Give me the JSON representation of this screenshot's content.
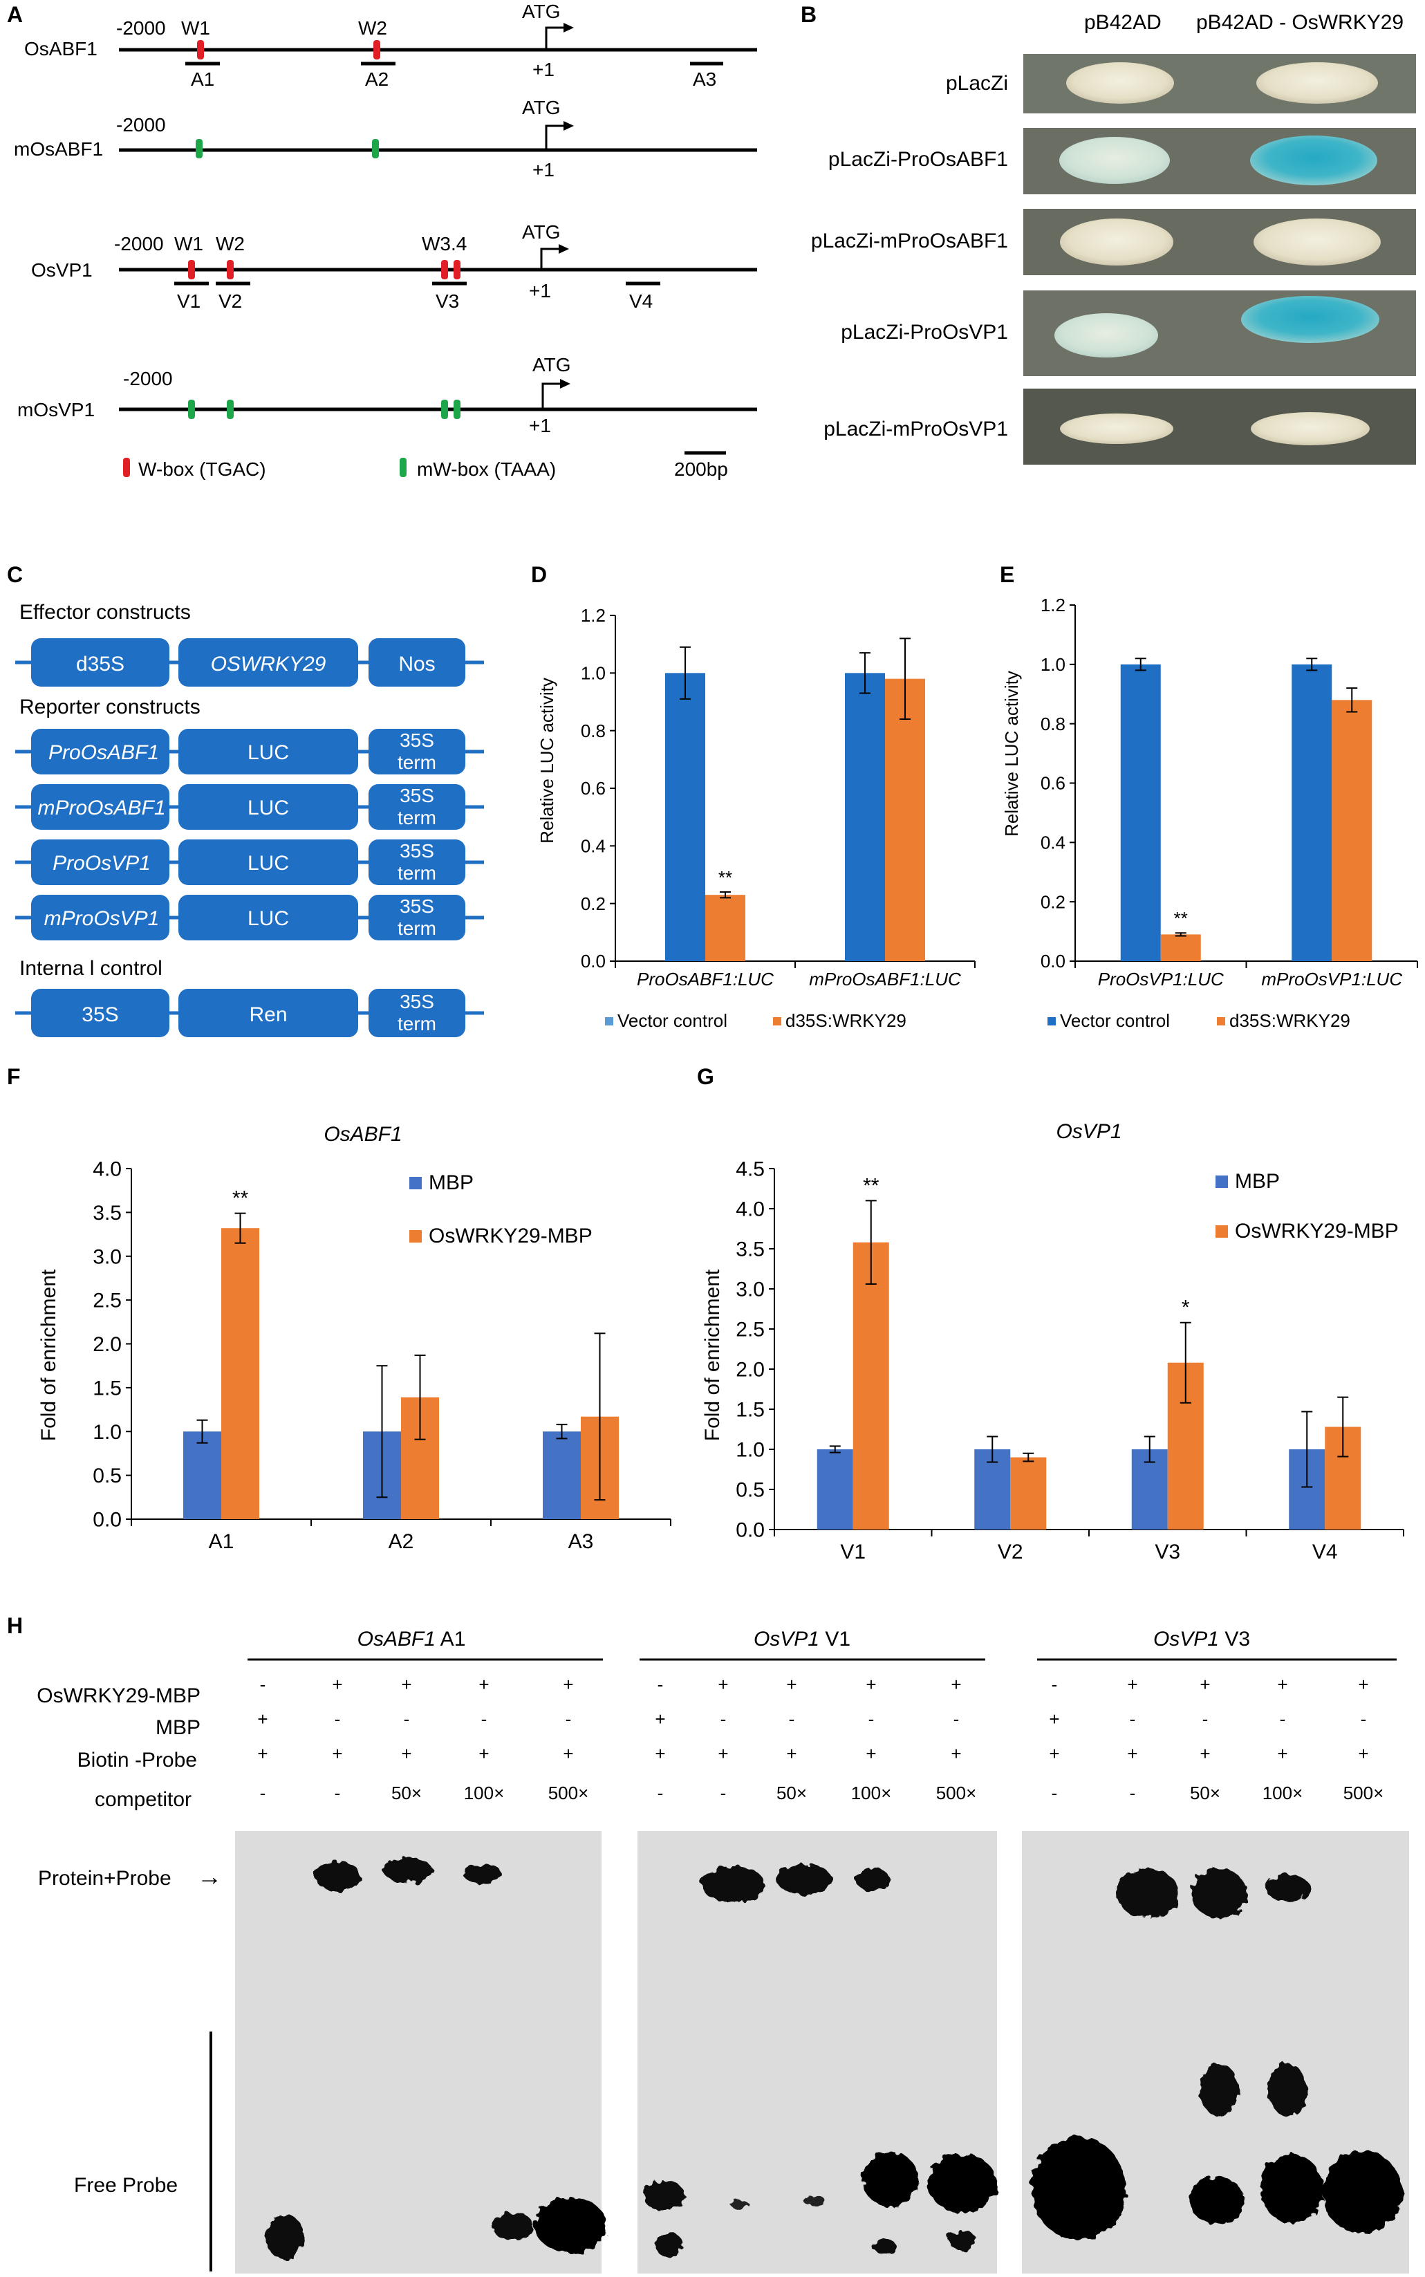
{
  "colors": {
    "red": "#e02026",
    "green": "#1ea64b",
    "blue_bar": "#1f6fc4",
    "orange_bar": "#ed7d31",
    "blue_bar_fg": "#4472c4",
    "box_blue": "#1f6fc4",
    "gel_bg": "#dcdcdc"
  },
  "panelA": {
    "letter": "A",
    "tracks": [
      {
        "name": "OsABF1",
        "start": "-2000",
        "atg": "ATG",
        "plus1": "+1",
        "boxes": [
          {
            "label": "W1"
          },
          {
            "label": "W2"
          }
        ],
        "regions": [
          "A1",
          "A2",
          "A3"
        ]
      },
      {
        "name": "mOsABF1",
        "start": "-2000",
        "atg": "ATG",
        "plus1": "+1"
      },
      {
        "name": "OsVP1",
        "start": "-2000",
        "w1": "W1",
        "w2": "W2",
        "w34": "W3.4",
        "atg": "ATG",
        "plus1": "+1",
        "regions": [
          "V1",
          "V2",
          "V3",
          "V4"
        ]
      },
      {
        "name": "mOsVP1",
        "start": "-2000",
        "atg": "ATG",
        "plus1": "+1"
      }
    ],
    "legend_wbox": "W-box (TGAC)",
    "legend_mwbox": "mW-box (TAAA)",
    "scale": "200bp"
  },
  "panelB": {
    "letter": "B",
    "col1": "pB42AD",
    "col2": "pB42AD - OsWRKY29",
    "rows": [
      "pLacZi",
      "pLacZi-ProOsABF1",
      "pLacZi-mProOsABF1",
      "pLacZi-ProOsVP1",
      "pLacZi-mProOsVP1"
    ]
  },
  "panelC": {
    "letter": "C",
    "effector_title": "Effector  constructs",
    "effector": [
      "d35S",
      "OSWRKY29",
      "Nos"
    ],
    "reporter_title": "Reporter constructs",
    "reporters": [
      "ProOsABF1",
      "mProOsABF1",
      "ProOsVP1",
      "mProOsVP1"
    ],
    "luc": "LUC",
    "term1": "35S",
    "term2": "term",
    "internal_title": "Interna l control",
    "internal": [
      "35S",
      "Ren"
    ]
  },
  "panelD": {
    "letter": "D",
    "ylabel": "Relative LUC activity",
    "yticks": [
      "0.0",
      "0.2",
      "0.4",
      "0.6",
      "0.8",
      "1.0",
      "1.2"
    ],
    "legend": [
      "Vector control",
      "d35S:WRKY29"
    ]
  },
  "panelE": {
    "letter": "E",
    "ylabel": "Relative LUC activity",
    "yticks": [
      "0.0",
      "0.2",
      "0.4",
      "0.6",
      "0.8",
      "1.0",
      "1.2"
    ],
    "legend": [
      "Vector control",
      "d35S:WRKY29"
    ]
  },
  "panelF": {
    "letter": "F",
    "title": "OsABF1",
    "ylabel": "Fold of enrichment",
    "yticks": [
      "0.0",
      "0.5",
      "1.0",
      "1.5",
      "2.0",
      "2.5",
      "3.0",
      "3.5",
      "4.0"
    ],
    "legend": [
      "MBP",
      "OsWRKY29-MBP"
    ]
  },
  "panelG": {
    "letter": "G",
    "title": "OsVP1",
    "ylabel": "Fold of enrichment",
    "yticks": [
      "0.0",
      "0.5",
      "1.0",
      "1.5",
      "2.0",
      "2.5",
      "3.0",
      "3.5",
      "4.0",
      "4.5"
    ],
    "legend": [
      "MBP",
      "OsWRKY29-MBP"
    ]
  },
  "panelH": {
    "letter": "H",
    "groups": [
      {
        "gene": "OsABF1",
        "site": " A1"
      },
      {
        "gene": "OsVP1",
        "site": " V1"
      },
      {
        "gene": "OsVP1",
        "site": " V3"
      }
    ],
    "row_labels": [
      "OsWRKY29-MBP",
      "MBP",
      "Biotin -Probe",
      "competitor"
    ],
    "lanes": {
      "wrky": [
        "-",
        "+",
        "+",
        "+",
        "+"
      ],
      "mbp": [
        "+",
        "-",
        "-",
        "-",
        "-"
      ],
      "probe": [
        "+",
        "+",
        "+",
        "+",
        "+"
      ],
      "comp": [
        "-",
        "-",
        "50×",
        "100×",
        "500×"
      ]
    },
    "protein_probe": "Protein+Probe",
    "arrow": "→",
    "free_probe": "Free Probe"
  },
  "chart_data": [
    {
      "panel": "D",
      "type": "bar",
      "categories": [
        "ProOsABF1:LUC",
        "mProOsABF1:LUC"
      ],
      "series": [
        {
          "name": "Vector control",
          "values": [
            1.0,
            1.0
          ],
          "errors": [
            0.09,
            0.07
          ]
        },
        {
          "name": "d35S:WRKY29",
          "values": [
            0.23,
            0.98
          ],
          "errors": [
            0.01,
            0.14
          ]
        }
      ],
      "annotations": [
        {
          "category": "ProOsABF1:LUC",
          "series": "d35S:WRKY29",
          "text": "**"
        }
      ],
      "ylabel": "Relative LUC activity",
      "ylim": [
        0,
        1.2
      ]
    },
    {
      "panel": "E",
      "type": "bar",
      "categories": [
        "ProOsVP1:LUC",
        "mProOsVP1:LUC"
      ],
      "series": [
        {
          "name": "Vector control",
          "values": [
            1.0,
            1.0
          ],
          "errors": [
            0.02,
            0.02
          ]
        },
        {
          "name": "d35S:WRKY29",
          "values": [
            0.09,
            0.88
          ],
          "errors": [
            0.005,
            0.04
          ]
        }
      ],
      "annotations": [
        {
          "category": "ProOsVP1:LUC",
          "series": "d35S:WRKY29",
          "text": "**"
        }
      ],
      "ylabel": "Relative LUC activity",
      "ylim": [
        0,
        1.2
      ]
    },
    {
      "panel": "F",
      "type": "bar",
      "title": "OsABF1",
      "categories": [
        "A1",
        "A2",
        "A3"
      ],
      "series": [
        {
          "name": "MBP",
          "values": [
            1.0,
            1.0,
            1.0
          ],
          "errors": [
            0.13,
            0.75,
            0.08
          ]
        },
        {
          "name": "OsWRKY29-MBP",
          "values": [
            3.32,
            1.39,
            1.17
          ],
          "errors": [
            0.17,
            0.48,
            0.95
          ]
        }
      ],
      "annotations": [
        {
          "category": "A1",
          "series": "OsWRKY29-MBP",
          "text": "**"
        }
      ],
      "ylabel": "Fold of enrichment",
      "ylim": [
        0,
        4.0
      ]
    },
    {
      "panel": "G",
      "type": "bar",
      "title": "OsVP1",
      "categories": [
        "V1",
        "V2",
        "V3",
        "V4"
      ],
      "series": [
        {
          "name": "MBP",
          "values": [
            1.0,
            1.0,
            1.0,
            1.0
          ],
          "errors": [
            0.04,
            0.16,
            0.16,
            0.47
          ]
        },
        {
          "name": "OsWRKY29-MBP",
          "values": [
            3.58,
            0.9,
            2.08,
            1.28
          ],
          "errors": [
            0.52,
            0.05,
            0.5,
            0.37
          ]
        }
      ],
      "annotations": [
        {
          "category": "V1",
          "series": "OsWRKY29-MBP",
          "text": "**"
        },
        {
          "category": "V3",
          "series": "OsWRKY29-MBP",
          "text": "*"
        }
      ],
      "ylabel": "Fold of enrichment",
      "ylim": [
        0,
        4.5
      ]
    }
  ]
}
